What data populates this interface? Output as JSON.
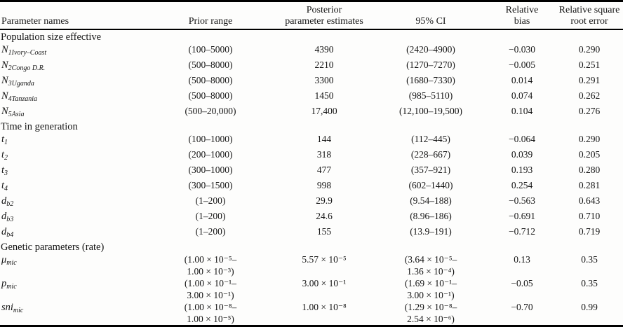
{
  "table": {
    "headers": [
      {
        "id": "parameter-names",
        "lines": [
          "",
          "Parameter names"
        ]
      },
      {
        "id": "prior-range",
        "lines": [
          "",
          "Prior range"
        ]
      },
      {
        "id": "posterior-estimates",
        "lines": [
          "Posterior",
          "parameter estimates"
        ]
      },
      {
        "id": "ci",
        "lines": [
          "",
          "95% CI"
        ]
      },
      {
        "id": "relative-bias",
        "lines": [
          "Relative",
          "bias"
        ]
      },
      {
        "id": "relative-square-root-error",
        "lines": [
          "Relative square",
          "root error"
        ]
      }
    ],
    "rows": [
      {
        "kind": "section",
        "label": "Population size effective"
      },
      {
        "kind": "param",
        "base": "N",
        "sub": "1Ivory–Coast",
        "prior": [
          "(100–5000)"
        ],
        "post": [
          "4390"
        ],
        "ci": [
          "(2420–4900)"
        ],
        "bias": "−0.030",
        "rse": "0.290"
      },
      {
        "kind": "param",
        "base": "N",
        "sub": "2Congo D.R.",
        "prior": [
          "(500–8000)"
        ],
        "post": [
          "2210"
        ],
        "ci": [
          "(1270–7270)"
        ],
        "bias": "−0.005",
        "rse": "0.251"
      },
      {
        "kind": "param",
        "base": "N",
        "sub": "3Uganda",
        "prior": [
          "(500–8000)"
        ],
        "post": [
          "3300"
        ],
        "ci": [
          "(1680–7330)"
        ],
        "bias": "0.014",
        "rse": "0.291"
      },
      {
        "kind": "param",
        "base": "N",
        "sub": "4Tanzania",
        "prior": [
          "(500–8000)"
        ],
        "post": [
          "1450"
        ],
        "ci": [
          "(985–5110)"
        ],
        "bias": "0.074",
        "rse": "0.262"
      },
      {
        "kind": "param",
        "base": "N",
        "sub": "5Asia",
        "prior": [
          "(500–20,000)"
        ],
        "post": [
          "17,400"
        ],
        "ci": [
          "(12,100–19,500)"
        ],
        "bias": "0.104",
        "rse": "0.276"
      },
      {
        "kind": "section",
        "label": "Time in generation"
      },
      {
        "kind": "param",
        "base": "t",
        "sub": "1",
        "prior": [
          "(100–1000)"
        ],
        "post": [
          "144"
        ],
        "ci": [
          "(112–445)"
        ],
        "bias": "−0.064",
        "rse": "0.290"
      },
      {
        "kind": "param",
        "base": "t",
        "sub": "2",
        "prior": [
          "(200–1000)"
        ],
        "post": [
          "318"
        ],
        "ci": [
          "(228–667)"
        ],
        "bias": "0.039",
        "rse": "0.205"
      },
      {
        "kind": "param",
        "base": "t",
        "sub": "3",
        "prior": [
          "(300–1000)"
        ],
        "post": [
          "477"
        ],
        "ci": [
          "(357–921)"
        ],
        "bias": "0.193",
        "rse": "0.280"
      },
      {
        "kind": "param",
        "base": "t",
        "sub": "4",
        "prior": [
          "(300–1500)"
        ],
        "post": [
          "998"
        ],
        "ci": [
          "(602–1440)"
        ],
        "bias": "0.254",
        "rse": "0.281"
      },
      {
        "kind": "param",
        "base": "d",
        "sub": "b2",
        "prior": [
          "(1–200)"
        ],
        "post": [
          "29.9"
        ],
        "ci": [
          "(9.54–188)"
        ],
        "bias": "−0.563",
        "rse": "0.643"
      },
      {
        "kind": "param",
        "base": "d",
        "sub": "b3",
        "prior": [
          "(1–200)"
        ],
        "post": [
          "24.6"
        ],
        "ci": [
          "(8.96–186)"
        ],
        "bias": "−0.691",
        "rse": "0.710"
      },
      {
        "kind": "param",
        "base": "d",
        "sub": "b4",
        "prior": [
          "(1–200)"
        ],
        "post": [
          "155"
        ],
        "ci": [
          "(13.9–191)"
        ],
        "bias": "−0.712",
        "rse": "0.719"
      },
      {
        "kind": "section",
        "label": "Genetic parameters (rate)"
      },
      {
        "kind": "param",
        "base": "μ",
        "sub": "mic",
        "prior": [
          "(1.00 × 10⁻⁵–",
          "1.00 × 10⁻³)"
        ],
        "post": [
          "5.57 × 10⁻⁵"
        ],
        "ci": [
          "(3.64 × 10⁻⁵–",
          "1.36 × 10⁻⁴)"
        ],
        "bias": "0.13",
        "rse": "0.35"
      },
      {
        "kind": "param",
        "base": "p",
        "sub": "mic",
        "prior": [
          "(1.00 × 10⁻¹–",
          "3.00 × 10⁻¹)"
        ],
        "post": [
          "3.00 × 10⁻¹"
        ],
        "ci": [
          "(1.69 × 10⁻¹–",
          "3.00 × 10⁻¹)"
        ],
        "bias": "−0.05",
        "rse": "0.35"
      },
      {
        "kind": "param",
        "base": "sni",
        "sub": "mic",
        "prior": [
          "(1.00 × 10⁻⁸–",
          "1.00 × 10⁻⁵)"
        ],
        "post": [
          "1.00 × 10⁻⁸"
        ],
        "ci": [
          "(1.29 × 10⁻⁸–",
          "2.54 × 10⁻⁶)"
        ],
        "bias": "−0.70",
        "rse": "0.99"
      }
    ]
  }
}
